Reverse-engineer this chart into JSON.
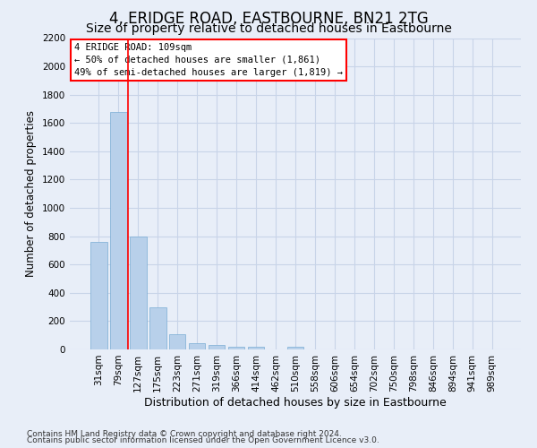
{
  "title": "4, ERIDGE ROAD, EASTBOURNE, BN21 2TG",
  "subtitle": "Size of property relative to detached houses in Eastbourne",
  "xlabel": "Distribution of detached houses by size in Eastbourne",
  "ylabel": "Number of detached properties",
  "categories": [
    "31sqm",
    "79sqm",
    "127sqm",
    "175sqm",
    "223sqm",
    "271sqm",
    "319sqm",
    "366sqm",
    "414sqm",
    "462sqm",
    "510sqm",
    "558sqm",
    "606sqm",
    "654sqm",
    "702sqm",
    "750sqm",
    "798sqm",
    "846sqm",
    "894sqm",
    "941sqm",
    "989sqm"
  ],
  "values": [
    760,
    1680,
    795,
    300,
    110,
    42,
    30,
    22,
    20,
    0,
    20,
    0,
    0,
    0,
    0,
    0,
    0,
    0,
    0,
    0,
    0
  ],
  "bar_color": "#b8d0ea",
  "bar_edge_color": "#7aadd4",
  "grid_color": "#c8d4e8",
  "background_color": "#e8eef8",
  "vline_x": 1.5,
  "vline_color": "red",
  "annotation_text": "4 ERIDGE ROAD: 109sqm\n← 50% of detached houses are smaller (1,861)\n49% of semi-detached houses are larger (1,819) →",
  "annotation_box_color": "white",
  "annotation_box_edge": "red",
  "ylim": [
    0,
    2200
  ],
  "yticks": [
    0,
    200,
    400,
    600,
    800,
    1000,
    1200,
    1400,
    1600,
    1800,
    2000,
    2200
  ],
  "footer1": "Contains HM Land Registry data © Crown copyright and database right 2024.",
  "footer2": "Contains public sector information licensed under the Open Government Licence v3.0.",
  "title_fontsize": 12,
  "subtitle_fontsize": 10,
  "xlabel_fontsize": 9,
  "ylabel_fontsize": 8.5,
  "tick_fontsize": 7.5,
  "annot_fontsize": 7.5,
  "footer_fontsize": 6.5
}
